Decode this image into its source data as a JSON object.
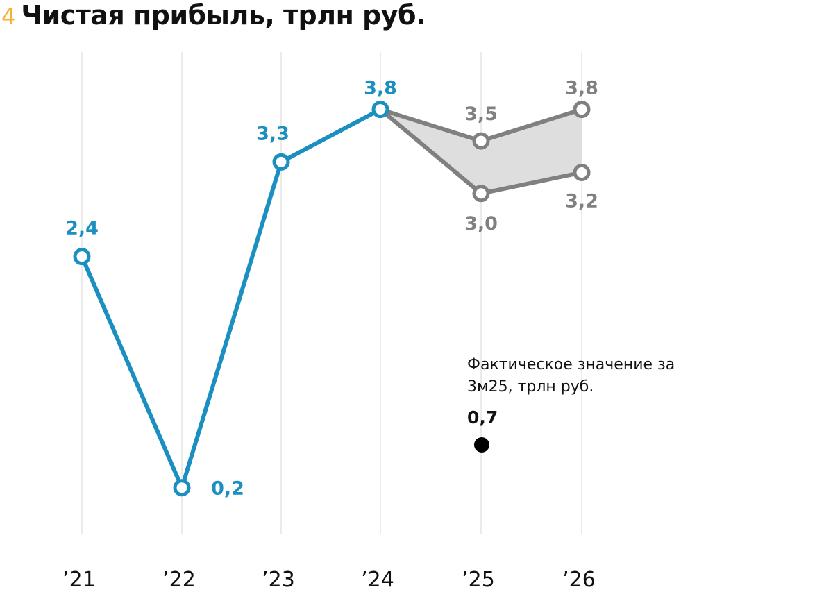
{
  "header": {
    "number": "4",
    "title": "Чистая прибыль, трлн руб."
  },
  "chart_data": {
    "type": "line",
    "categories": [
      "’21",
      "’22",
      "’23",
      "’24",
      "’25",
      "’26"
    ],
    "series": [
      {
        "values": [
          2.4,
          0.2,
          3.3,
          3.8,
          null,
          null
        ],
        "labels": [
          "2,4",
          "0,2",
          "3,3",
          "3,8",
          "",
          ""
        ],
        "color": "#1a8fc0"
      },
      {
        "values": [
          null,
          null,
          null,
          3.8,
          3.5,
          3.8
        ],
        "labels": [
          "",
          "",
          "",
          "",
          "3,5",
          "3,8"
        ],
        "color": "#808080"
      },
      {
        "values": [
          null,
          null,
          null,
          3.8,
          3.0,
          3.2
        ],
        "labels": [
          "",
          "",
          "",
          "",
          "3,0",
          "3,2"
        ],
        "color": "#808080"
      }
    ],
    "forecast_band_color": "#dedede",
    "gridlines": "vertical",
    "annotation": {
      "text": "Фактическое значение за 3м25, трлн руб.",
      "value": 0.7,
      "value_label": "0,7"
    }
  }
}
